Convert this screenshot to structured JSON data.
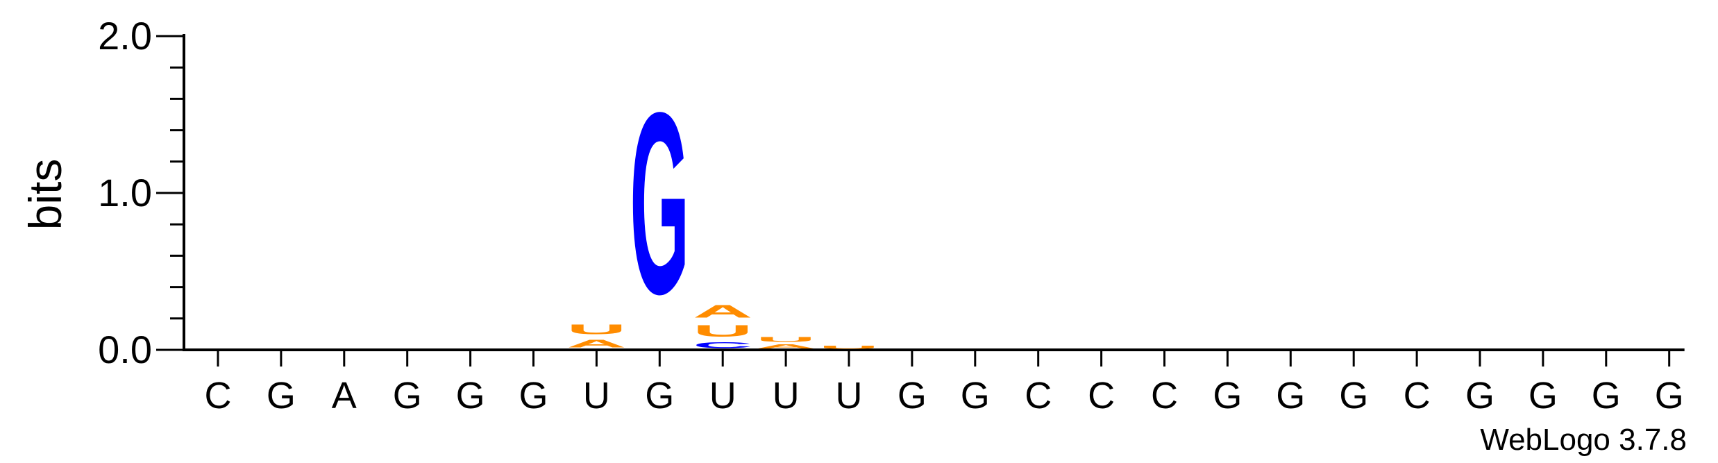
{
  "chart_data": {
    "type": "sequence-logo",
    "ylabel": "bits",
    "ylim": [
      0,
      2.0
    ],
    "yticks": [
      "0.0",
      "1.0",
      "2.0"
    ],
    "yticks_values": [
      0,
      1.0,
      2.0
    ],
    "positions": [
      "C",
      "G",
      "A",
      "G",
      "G",
      "G",
      "U",
      "G",
      "U",
      "U",
      "U",
      "G",
      "G",
      "C",
      "C",
      "C",
      "G",
      "G",
      "G",
      "C",
      "G",
      "G",
      "G",
      "G"
    ],
    "stacks": [
      {
        "position": 7,
        "letters": [
          {
            "letter": "A",
            "bits": 0.08
          },
          {
            "letter": "U",
            "bits": 0.1
          }
        ]
      },
      {
        "position": 8,
        "letters": [
          {
            "letter": "G",
            "bits": 1.85
          }
        ]
      },
      {
        "position": 9,
        "letters": [
          {
            "letter": "C",
            "bits": 0.06
          },
          {
            "letter": "U",
            "bits": 0.12
          },
          {
            "letter": "A",
            "bits": 0.13
          }
        ]
      },
      {
        "position": 10,
        "letters": [
          {
            "letter": "A",
            "bits": 0.04
          },
          {
            "letter": "U",
            "bits": 0.05
          }
        ]
      },
      {
        "position": 11,
        "letters": [
          {
            "letter": "U",
            "bits": 0.03
          }
        ]
      }
    ],
    "colors": {
      "A": "#ff8c00",
      "U": "#ff8c00",
      "G": "#0000ff",
      "C": "#0000ff"
    },
    "credit": "WebLogo 3.7.8"
  }
}
